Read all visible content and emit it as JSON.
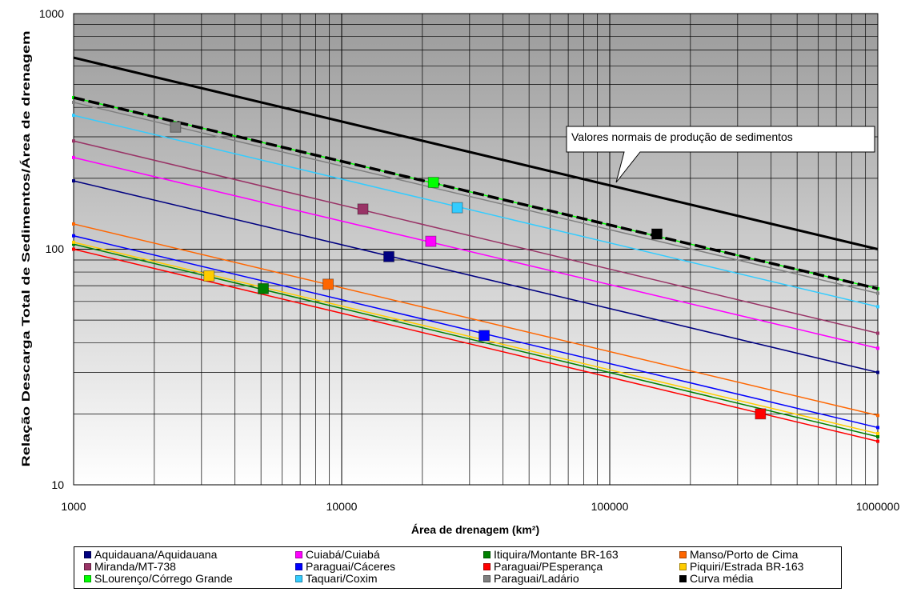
{
  "chart_data": {
    "type": "scatter",
    "xscale": "log",
    "yscale": "log",
    "xlim": [
      1000,
      1000000
    ],
    "ylim": [
      10,
      1000
    ],
    "x_ticks": [
      "1000",
      "10000",
      "100000",
      "1000000"
    ],
    "y_ticks": [
      "10",
      "100",
      "1000"
    ],
    "xlabel": "Área de drenagem (km²)",
    "ylabel": "Relação Descarga Total de Sedimentos/Área de drenagem",
    "grid": true,
    "legend_position": "bottom",
    "annotation": "Valores normais de produção de sedimentos",
    "normal_values_line": {
      "x": [
        1000,
        1000000
      ],
      "y": [
        650,
        100
      ],
      "color": "#000000"
    },
    "series": [
      {
        "name": "Aquidauana/Aquidauana",
        "color": "#000080",
        "point": [
          15000,
          93
        ],
        "trend": {
          "x": [
            1000,
            1000000
          ],
          "y": [
            195,
            30
          ]
        }
      },
      {
        "name": "Cuiabá/Cuiabá",
        "color": "#ff00ff",
        "point": [
          21500,
          108
        ],
        "trend": {
          "x": [
            1000,
            1000000
          ],
          "y": [
            245,
            38
          ]
        }
      },
      {
        "name": "Itiquira/Montante BR-163",
        "color": "#008000",
        "point": [
          5100,
          68
        ],
        "trend": {
          "x": [
            1000,
            1000000
          ],
          "y": [
            105,
            16
          ]
        }
      },
      {
        "name": "Manso/Porto de Cima",
        "color": "#ff6600",
        "point": [
          8900,
          71
        ],
        "trend": {
          "x": [
            1000,
            1000000
          ],
          "y": [
            128,
            19.7
          ]
        }
      },
      {
        "name": "Miranda/MT-738",
        "color": "#993366",
        "point": [
          12000,
          148
        ],
        "trend": {
          "x": [
            1000,
            1000000
          ],
          "y": [
            288,
            44
          ]
        }
      },
      {
        "name": "Paraguai/Cáceres",
        "color": "#0000ff",
        "point": [
          34000,
          43
        ],
        "trend": {
          "x": [
            1000,
            1000000
          ],
          "y": [
            114,
            17.5
          ]
        }
      },
      {
        "name": "Paraguai/PEsperança",
        "color": "#ff0000",
        "point": [
          365000,
          20
        ],
        "trend": {
          "x": [
            1000,
            1000000
          ],
          "y": [
            100,
            15.3
          ]
        }
      },
      {
        "name": "Piquiri/Estrada BR-163",
        "color": "#ffcc00",
        "point": [
          3200,
          77
        ],
        "trend": {
          "x": [
            1000,
            1000000
          ],
          "y": [
            107,
            16.5
          ]
        }
      },
      {
        "name": "SLourenço/Córrego Grande",
        "color": "#00ff00",
        "point": [
          22000,
          192
        ],
        "trend": {
          "x": [
            1000,
            1000000
          ],
          "y": [
            440,
            68
          ]
        }
      },
      {
        "name": "Taquari/Coxim",
        "color": "#33ccff",
        "point": [
          27000,
          150
        ],
        "trend": {
          "x": [
            1000,
            1000000
          ],
          "y": [
            370,
            57
          ]
        }
      },
      {
        "name": "Paraguai/Ladário",
        "color": "#808080",
        "point": [
          2400,
          330
        ],
        "trend": {
          "x": [
            1000,
            1000000
          ],
          "y": [
            420,
            65
          ]
        }
      },
      {
        "name": "Curva média",
        "color": "#000000",
        "point": [
          150000,
          116
        ],
        "trend": {
          "x": [
            1000,
            1000000
          ],
          "y": [
            440,
            68
          ]
        }
      }
    ]
  }
}
